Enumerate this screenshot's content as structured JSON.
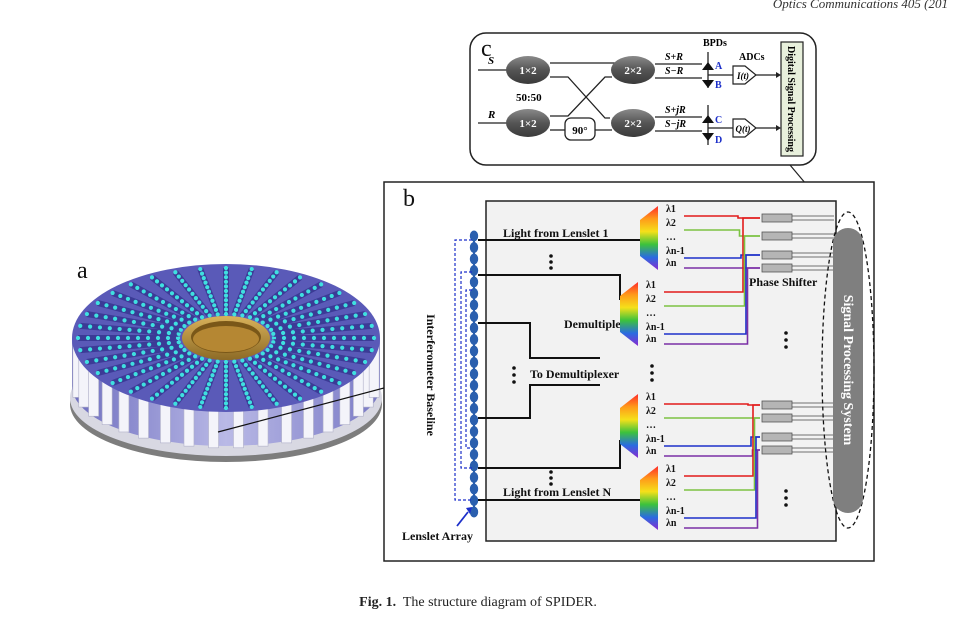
{
  "header": {
    "journal": "Optics Communications 405 (201"
  },
  "panels": {
    "a": "a",
    "b": "b",
    "c": "c"
  },
  "panel_c": {
    "signal_s": "S",
    "signal_r": "R",
    "coupler_1x2": "1×2",
    "coupler_2x2": "2×2",
    "ratio": "50:50",
    "phase": "90°",
    "bpds": "BPDs",
    "adcs": "ADCs",
    "out_s_plus_r": "S+R",
    "out_s_minus_r": "S−R",
    "out_s_plus_jr": "S+jR",
    "out_s_minus_jr": "S−jR",
    "det_a": "A",
    "det_b": "B",
    "det_c": "C",
    "det_d": "D",
    "adc_i": "I(t)",
    "adc_q": "Q(t)",
    "dsp": "Digital Signal Processing"
  },
  "panel_b": {
    "light_top": "Light from Lenslet 1",
    "light_bottom": "Light from Lenslet N",
    "demux": "Demultiplexer",
    "to_demux": "To Demultiplexer",
    "phase_shifter": "Phase Shifter",
    "signal_proc": "Signal Processing System",
    "baseline": "Interferometer Baseline",
    "lenslet_array": "Lenslet Array",
    "dots": "…",
    "lambda_1": "λ1",
    "lambda_2": "λ2",
    "lambda_n1": "λn-1",
    "lambda_n": "λn"
  },
  "caption": {
    "label": "Fig. 1.",
    "text": "The structure diagram of SPIDER."
  },
  "colors": {
    "red": "#e21b1b",
    "green": "#7cc242",
    "blue": "#1c2fc9",
    "purple": "#7b2fa6",
    "dsp_box": "#e8f0dc",
    "sps": "#7f7f7f",
    "lenslet": "#2a5fae"
  }
}
